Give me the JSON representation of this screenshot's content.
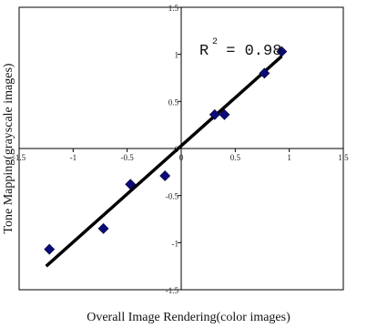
{
  "chart_data": {
    "type": "scatter",
    "title": "",
    "xlabel": "Overall Image Rendering(color images)",
    "ylabel": "Tone Mapping(grayscale images)",
    "xlim": [
      -1.5,
      1.5
    ],
    "ylim": [
      -1.5,
      1.5
    ],
    "x_ticks": [
      "-1.5",
      "-1",
      "-0.5",
      "0",
      "0.5",
      "1",
      "1.5"
    ],
    "y_ticks": [
      "1.5",
      "1",
      "0.5",
      "0",
      "-0.5",
      "-1",
      "-1.5"
    ],
    "x_tick_values": [
      -1.5,
      -1,
      -0.5,
      0,
      0.5,
      1,
      1.5
    ],
    "y_tick_values": [
      1.5,
      1,
      0.5,
      0,
      -0.5,
      -1,
      -1.5
    ],
    "points": [
      {
        "x": -1.22,
        "y": -1.07
      },
      {
        "x": -0.72,
        "y": -0.85
      },
      {
        "x": -0.47,
        "y": -0.38
      },
      {
        "x": -0.15,
        "y": -0.29
      },
      {
        "x": 0.31,
        "y": 0.36
      },
      {
        "x": 0.4,
        "y": 0.36
      },
      {
        "x": 0.77,
        "y": 0.8
      },
      {
        "x": 0.93,
        "y": 1.03
      }
    ],
    "fit_line": {
      "x": [
        -1.25,
        0.93
      ],
      "y": [
        -1.25,
        0.98
      ]
    },
    "annotation": {
      "label": "R",
      "superscript": "2",
      "text": " = 0.98"
    },
    "grid": false,
    "marker_color": "#0b0b7a",
    "line_color": "#000000"
  }
}
